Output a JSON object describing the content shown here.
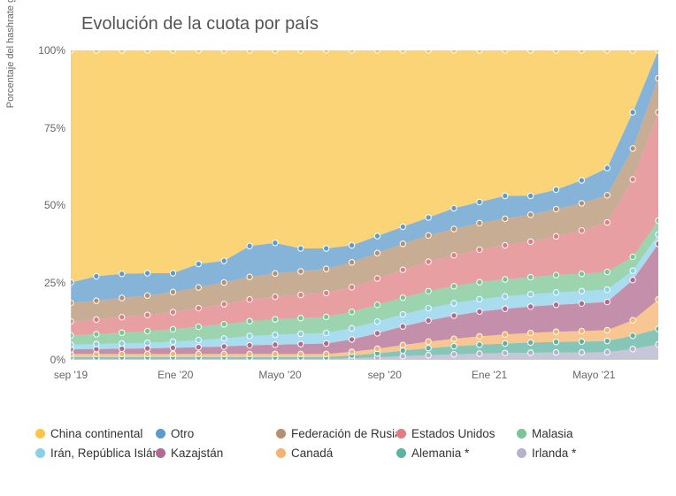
{
  "chart": {
    "type": "area-stacked",
    "title": "Evolución de la cuota por país",
    "yaxis_label": "Porcentaje del hashrate global (promedio mensual)",
    "ylim": [
      0,
      100
    ],
    "ytick_step": 25,
    "ytick_labels": [
      "0%",
      "25%",
      "50%",
      "75%",
      "100%"
    ],
    "background_color": "#ffffff",
    "grid_visible": false,
    "axis_color": "#cfcfcf",
    "tick_font_size": 12,
    "title_fontsize": 20,
    "label_fontsize": 11,
    "marker_style": "circle",
    "marker_size": 3.2,
    "marker_stroke": "#ffffff",
    "x_labels": [
      "sep '19",
      "",
      "",
      "",
      "Ene '20",
      "",
      "",
      "",
      "Mayo '20",
      "",
      "",
      "",
      "sep '20",
      "",
      "",
      "",
      "Ene '21",
      "",
      "",
      "",
      "Mayo '21",
      "",
      "",
      ""
    ],
    "xtick_indices": [
      0,
      4,
      8,
      12,
      16,
      20
    ],
    "series": [
      {
        "name": "Irlanda *",
        "color": "#b3b3cc",
        "values": [
          0.3,
          0.3,
          0.3,
          0.3,
          0.3,
          0.3,
          0.3,
          0.3,
          0.3,
          0.3,
          0.3,
          0.5,
          0.8,
          1.2,
          1.5,
          1.8,
          2.0,
          2.2,
          2.3,
          2.4,
          2.4,
          2.5,
          3.5,
          5.0
        ]
      },
      {
        "name": "Alemania *",
        "color": "#5eb3a0",
        "values": [
          0.6,
          0.6,
          0.6,
          0.6,
          0.6,
          0.6,
          0.6,
          0.6,
          0.6,
          0.6,
          0.6,
          0.9,
          1.3,
          1.8,
          2.3,
          2.6,
          2.9,
          3.1,
          3.3,
          3.4,
          3.5,
          3.6,
          4.3,
          5.0
        ]
      },
      {
        "name": "Canadá",
        "color": "#f4b36e",
        "values": [
          1.0,
          1.0,
          1.0,
          1.0,
          1.0,
          1.0,
          1.0,
          1.0,
          1.0,
          1.0,
          1.0,
          1.2,
          1.5,
          1.8,
          2.1,
          2.4,
          2.7,
          2.9,
          3.1,
          3.3,
          3.4,
          3.5,
          5.0,
          9.5
        ]
      },
      {
        "name": "Kazajstán",
        "color": "#b06a8e",
        "values": [
          1.5,
          1.6,
          1.7,
          1.8,
          2.0,
          2.2,
          2.4,
          2.8,
          3.0,
          3.2,
          3.4,
          4.0,
          5.0,
          6.0,
          6.8,
          7.5,
          8.0,
          8.3,
          8.5,
          8.7,
          8.9,
          9.1,
          13.0,
          18.0
        ]
      },
      {
        "name": "Irán, República Islámi",
        "color": "#8bd0e8",
        "values": [
          1.5,
          1.6,
          1.7,
          1.8,
          2.0,
          2.3,
          2.6,
          3.0,
          3.2,
          3.3,
          3.4,
          3.6,
          3.8,
          3.9,
          4.0,
          4.0,
          4.0,
          4.0,
          4.0,
          4.0,
          4.0,
          4.0,
          3.0,
          3.0
        ]
      },
      {
        "name": "Malasia",
        "color": "#79c594",
        "values": [
          3.0,
          3.2,
          3.5,
          3.8,
          4.0,
          4.3,
          4.6,
          4.8,
          5.0,
          5.1,
          5.2,
          5.3,
          5.4,
          5.4,
          5.5,
          5.5,
          5.5,
          5.5,
          5.5,
          5.6,
          5.6,
          5.7,
          4.5,
          4.5
        ]
      },
      {
        "name": "Estados Unidos",
        "color": "#df7f83",
        "values": [
          4.5,
          4.7,
          5.0,
          5.2,
          5.5,
          6.0,
          6.5,
          7.0,
          7.3,
          7.5,
          7.7,
          8.0,
          8.5,
          9.0,
          9.5,
          10.0,
          10.5,
          11.0,
          11.5,
          12.5,
          14.0,
          16.0,
          25.0,
          35.0
        ]
      },
      {
        "name": "Federación de Rusia",
        "color": "#b59172",
        "values": [
          6.0,
          6.1,
          6.2,
          6.3,
          6.5,
          6.7,
          7.0,
          7.3,
          7.5,
          7.6,
          7.8,
          8.0,
          8.2,
          8.4,
          8.5,
          8.5,
          8.6,
          8.6,
          8.7,
          8.8,
          8.8,
          8.8,
          10.0,
          11.0
        ]
      },
      {
        "name": "Otro",
        "color": "#5e9acb",
        "values": [
          6.6,
          7.9,
          7.8,
          7.2,
          6.1,
          7.6,
          7.0,
          10.0,
          9.9,
          7.4,
          6.6,
          5.5,
          5.5,
          5.5,
          5.8,
          6.7,
          6.8,
          7.4,
          6.1,
          6.3,
          7.4,
          8.8,
          11.7,
          9.0
        ]
      },
      {
        "name": "China continental",
        "color": "#f9c64a",
        "values": [
          75.0,
          74.0,
          73.0,
          73.0,
          73.0,
          72.0,
          71.0,
          68.0,
          63.0,
          60.0,
          65.0,
          64.0,
          63.0,
          60.0,
          57.0,
          56.0,
          53.0,
          54.0,
          48.0,
          47.0,
          45.0,
          42.0,
          38.0,
          20.0
        ]
      }
    ],
    "legend": {
      "order": [
        "China continental",
        "Otro",
        "Federación de Rusia",
        "Estados Unidos",
        "Malasia",
        "Irán, República Islámi",
        "Kazajstán",
        "Canadá",
        "Alemania *",
        "Irlanda *"
      ],
      "columns": 5,
      "font_size": 13.5,
      "swatch_shape": "circle"
    }
  }
}
